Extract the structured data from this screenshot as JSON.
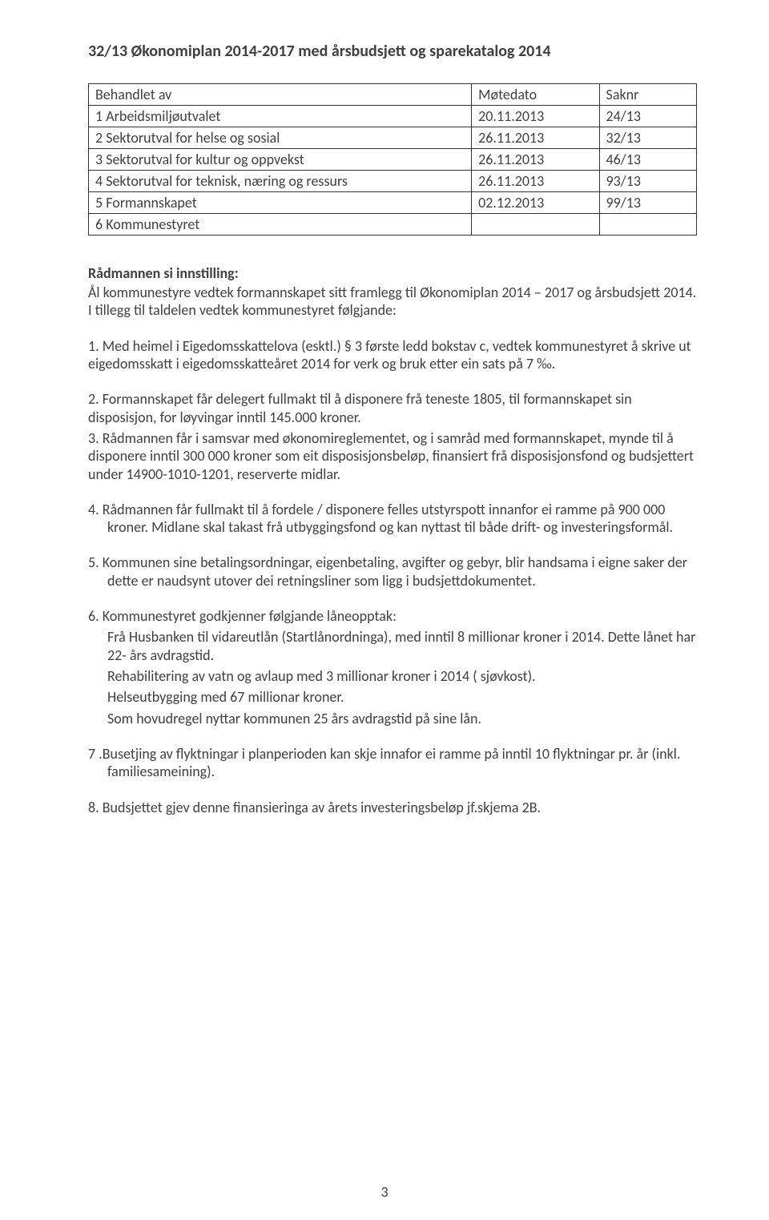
{
  "title": "32/13 Økonomiplan 2014-2017 med årsbudsjett og sparekatalog 2014",
  "table": {
    "headers": [
      "Behandlet av",
      "Møtedato",
      "Saknr"
    ],
    "rows": [
      [
        "1 Arbeidsmiljøutvalet",
        "20.11.2013",
        "24/13"
      ],
      [
        "2 Sektorutval for helse og sosial",
        "26.11.2013",
        "32/13"
      ],
      [
        "3 Sektorutval for kultur og oppvekst",
        "26.11.2013",
        "46/13"
      ],
      [
        "4 Sektorutval for teknisk, næring og ressurs",
        "26.11.2013",
        "93/13"
      ],
      [
        "5 Formannskapet",
        "02.12.2013",
        "99/13"
      ],
      [
        "6 Kommunestyret",
        "",
        ""
      ]
    ]
  },
  "section_heading": "Rådmannen si innstilling:",
  "intro": "Ål kommunestyre vedtek formannskapet sitt framlegg til Økonomiplan 2014 – 2017 og årsbudsjett 2014. I tillegg til taldelen vedtek kommunestyret følgjande:",
  "items": {
    "p1": "1. Med heimel i Eigedomsskattelova (esktl.) § 3 første ledd bokstav c, vedtek kommunestyret å skrive ut eigedomsskatt i eigedomsskatteåret 2014 for verk og bruk etter ein sats på 7 ‰.",
    "p2": "2.  Formannskapet får delegert fullmakt til å disponere frå teneste 1805, til formannskapet sin disposisjon, for løyvingar inntil 145.000 kroner.",
    "p3": "3. Rådmannen får i samsvar med økonomireglementet, og i samråd med formannskapet, mynde til å disponere inntil 300 000 kroner som eit disposisjonsbeløp, finansiert frå disposisjonsfond og budsjettert under 14900-1010-1201, reserverte midlar.",
    "p4": "4. Rådmannen får fullmakt til å fordele / disponere felles utstyrspott innanfor ei ramme på 900 000 kroner. Midlane skal takast frå utbyggingsfond og kan nyttast til både drift- og investeringsformål.",
    "p5": "5. Kommunen sine betalingsordningar, eigenbetaling, avgifter og gebyr, blir handsama i eigne saker der dette er naudsynt utover dei retningsliner som ligg i budsjettdokumentet.",
    "p6a": "6. Kommunestyret godkjenner følgjande låneopptak:",
    "p6b": "Frå Husbanken til vidareutlån (Startlånordninga), med inntil 8 millionar kroner i 2014. Dette lånet har 22- års avdragstid.",
    "p6c": "Rehabilitering av vatn og avlaup med 3 millionar kroner i 2014 ( sjøvkost).",
    "p6d": "Helseutbygging med 67 millionar kroner.",
    "p6e": "Som hovudregel nyttar kommunen 25 års avdragstid på sine lån.",
    "p7": "7 .Busetjing av flyktningar i planperioden kan skje innafor ei ramme på inntil 10 flyktningar pr. år (inkl. familiesameining).",
    "p8": "8. Budsjettet gjev denne finansieringa av årets investeringsbeløp jf.skjema 2B."
  },
  "page_number": "3"
}
